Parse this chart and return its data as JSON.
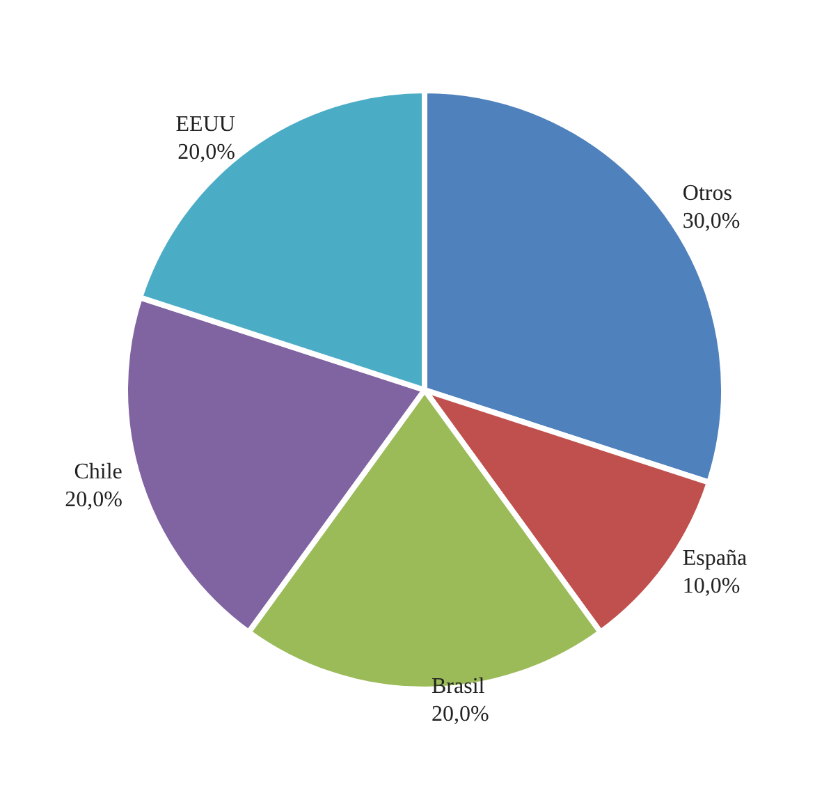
{
  "chart_data": {
    "type": "pie",
    "categories": [
      "Otros",
      "España",
      "Brasil",
      "Chile",
      "EEUU"
    ],
    "values": [
      30,
      10,
      20,
      20,
      20
    ],
    "colors": [
      "#4f81bd",
      "#c0504d",
      "#9bbb59",
      "#8064a2",
      "#4bacc6"
    ],
    "value_labels": [
      "30,0%",
      "10,0%",
      "20,0%",
      "20,0%",
      "20,0%"
    ]
  }
}
